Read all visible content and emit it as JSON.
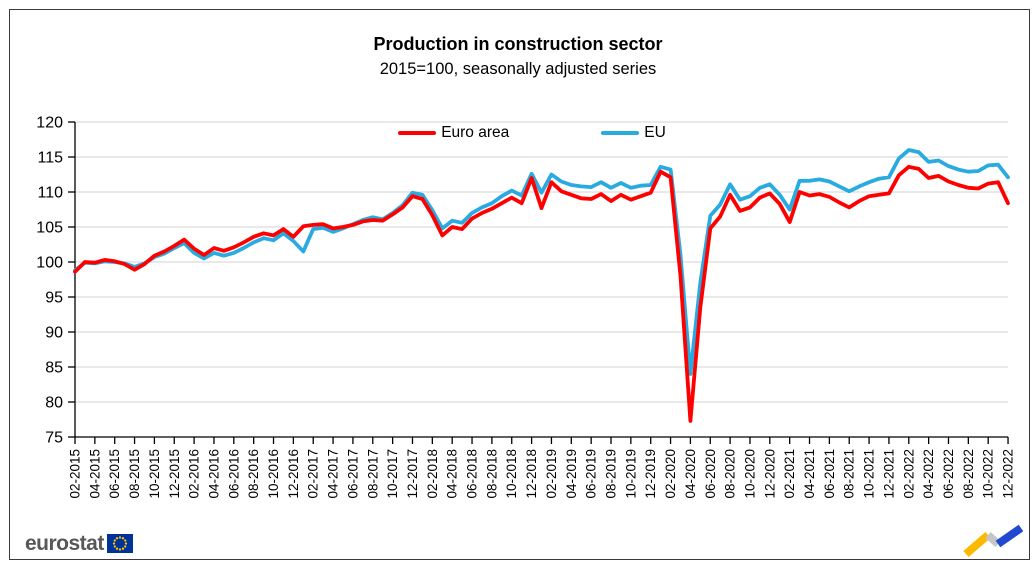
{
  "header": {
    "title": "Production in construction sector",
    "subtitle": "2015=100, seasonally adjusted series"
  },
  "legend": [
    {
      "label": "Euro area",
      "color": "#ff0000"
    },
    {
      "label": "EU",
      "color": "#29abe2"
    }
  ],
  "chart_data": {
    "type": "line",
    "title": "Production in construction sector",
    "subtitle": "2015=100, seasonally adjusted series",
    "ylim": [
      75,
      120
    ],
    "ytick_step": 5,
    "grid": true,
    "legend_position": "top-center",
    "y_tick_labels": [
      "75",
      "80",
      "85",
      "90",
      "95",
      "100",
      "105",
      "110",
      "115",
      "120"
    ],
    "x_tick_labels": [
      "02-2015",
      "04-2015",
      "06-2015",
      "08-2015",
      "10-2015",
      "12-2015",
      "02-2016",
      "04-2016",
      "06-2016",
      "08-2016",
      "10-2016",
      "12-2016",
      "02-2017",
      "04-2017",
      "06-2017",
      "08-2017",
      "10-2017",
      "12-2017",
      "02-2018",
      "04-2018",
      "06-2018",
      "08-2018",
      "10-2018",
      "12-2018",
      "02-2019",
      "04-2019",
      "06-2019",
      "08-2019",
      "10-2019",
      "12-2019",
      "02-2020",
      "04-2020",
      "06-2020",
      "08-2020",
      "10-2020",
      "12-2020",
      "02-2021",
      "04-2021",
      "06-2021",
      "08-2021",
      "10-2021",
      "12-2021",
      "02-2022",
      "04-2022",
      "06-2022",
      "08-2022",
      "10-2022",
      "12-2022"
    ],
    "x": [
      "02-2015",
      "03-2015",
      "04-2015",
      "05-2015",
      "06-2015",
      "07-2015",
      "08-2015",
      "09-2015",
      "10-2015",
      "11-2015",
      "12-2015",
      "01-2016",
      "02-2016",
      "03-2016",
      "04-2016",
      "05-2016",
      "06-2016",
      "07-2016",
      "08-2016",
      "09-2016",
      "10-2016",
      "11-2016",
      "12-2016",
      "01-2017",
      "02-2017",
      "03-2017",
      "04-2017",
      "05-2017",
      "06-2017",
      "07-2017",
      "08-2017",
      "09-2017",
      "10-2017",
      "11-2017",
      "12-2017",
      "01-2018",
      "02-2018",
      "03-2018",
      "04-2018",
      "05-2018",
      "06-2018",
      "07-2018",
      "08-2018",
      "09-2018",
      "10-2018",
      "11-2018",
      "12-2018",
      "01-2019",
      "02-2019",
      "03-2019",
      "04-2019",
      "05-2019",
      "06-2019",
      "07-2019",
      "08-2019",
      "09-2019",
      "10-2019",
      "11-2019",
      "12-2019",
      "01-2020",
      "02-2020",
      "03-2020",
      "04-2020",
      "05-2020",
      "06-2020",
      "07-2020",
      "08-2020",
      "09-2020",
      "10-2020",
      "11-2020",
      "12-2020",
      "01-2021",
      "02-2021",
      "03-2021",
      "04-2021",
      "05-2021",
      "06-2021",
      "07-2021",
      "08-2021",
      "09-2021",
      "10-2021",
      "11-2021",
      "12-2021",
      "01-2022",
      "02-2022",
      "03-2022",
      "04-2022",
      "05-2022",
      "06-2022",
      "07-2022",
      "08-2022",
      "09-2022",
      "10-2022",
      "11-2022",
      "12-2022"
    ],
    "series": [
      {
        "name": "Euro area",
        "color": "#ff0000",
        "values": [
          98.6,
          100.0,
          99.9,
          100.3,
          100.1,
          99.7,
          98.9,
          99.7,
          100.9,
          101.5,
          102.3,
          103.2,
          101.9,
          101.0,
          102.0,
          101.6,
          102.1,
          102.8,
          103.6,
          104.1,
          103.8,
          104.7,
          103.6,
          105.1,
          105.3,
          105.4,
          104.8,
          105.0,
          105.3,
          105.8,
          106.0,
          105.9,
          106.8,
          107.8,
          109.4,
          109.0,
          106.7,
          103.8,
          105.0,
          104.7,
          106.2,
          107.0,
          107.6,
          108.4,
          109.2,
          108.4,
          112.0,
          107.7,
          111.4,
          110.1,
          109.6,
          109.1,
          109.0,
          109.7,
          108.7,
          109.6,
          108.9,
          109.4,
          109.9,
          112.9,
          112.1,
          98.0,
          77.3,
          93.5,
          104.8,
          106.5,
          109.6,
          107.3,
          107.8,
          109.2,
          109.8,
          108.3,
          105.7,
          110.0,
          109.5,
          109.7,
          109.3,
          108.5,
          107.8,
          108.7,
          109.4,
          109.6,
          109.8,
          112.4,
          113.6,
          113.3,
          112.0,
          112.3,
          111.5,
          111.0,
          110.6,
          110.5,
          111.2,
          111.4,
          108.4
        ]
      },
      {
        "name": "EU",
        "color": "#29abe2",
        "values": [
          98.8,
          99.9,
          99.8,
          100.1,
          100.0,
          99.8,
          99.3,
          99.8,
          100.7,
          101.2,
          102.0,
          102.7,
          101.3,
          100.5,
          101.3,
          100.9,
          101.3,
          102.0,
          102.8,
          103.4,
          103.1,
          104.1,
          103.0,
          101.5,
          104.7,
          104.9,
          104.3,
          104.8,
          105.4,
          106.0,
          106.4,
          106.1,
          107.0,
          108.1,
          109.9,
          109.6,
          107.4,
          104.8,
          105.9,
          105.6,
          107.0,
          107.8,
          108.4,
          109.4,
          110.2,
          109.5,
          112.6,
          109.9,
          112.5,
          111.5,
          111.0,
          110.8,
          110.7,
          111.4,
          110.6,
          111.3,
          110.6,
          110.9,
          111.0,
          113.6,
          113.2,
          101.0,
          84.0,
          97.0,
          106.6,
          108.2,
          111.1,
          108.9,
          109.4,
          110.6,
          111.1,
          109.6,
          107.5,
          111.6,
          111.6,
          111.8,
          111.5,
          110.8,
          110.1,
          110.8,
          111.4,
          111.9,
          112.1,
          114.8,
          116.0,
          115.7,
          114.3,
          114.5,
          113.7,
          113.2,
          112.9,
          113.0,
          113.8,
          113.9,
          112.1
        ]
      }
    ]
  },
  "footer": {
    "brand": "eurostat",
    "flag_bg": "#003399",
    "flag_star_color": "#ffcc00",
    "trend_icon_colors": [
      "#fbba00",
      "#c6c6c6",
      "#2049d0"
    ]
  },
  "style": {
    "gridline_color": "#d3d3d3",
    "axis_color": "#000000"
  }
}
